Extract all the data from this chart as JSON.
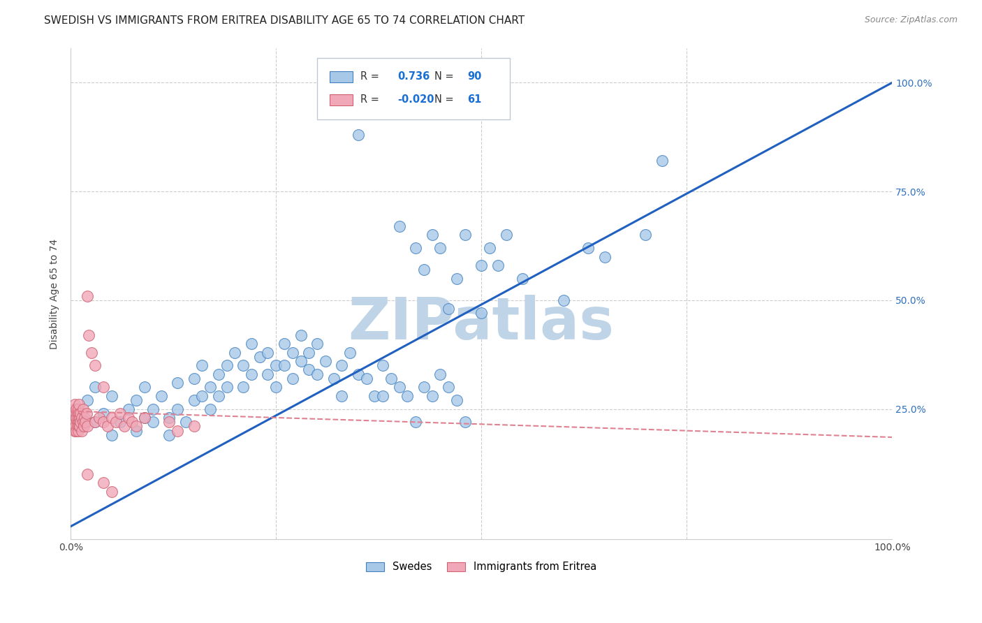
{
  "title": "SWEDISH VS IMMIGRANTS FROM ERITREA DISABILITY AGE 65 TO 74 CORRELATION CHART",
  "source": "Source: ZipAtlas.com",
  "ylabel": "Disability Age 65 to 74",
  "xlim": [
    0,
    1
  ],
  "ylim": [
    -0.05,
    1.08
  ],
  "swedes_color": "#a8c8e8",
  "swedes_edge_color": "#4080c0",
  "eritrea_color": "#f0a8b8",
  "eritrea_edge_color": "#d06070",
  "swedes_line_color": "#2060c0",
  "eritrea_line_color": "#e08090",
  "background_color": "#ffffff",
  "grid_color": "#cccccc",
  "legend_R_swedes": "0.736",
  "legend_N_swedes": "90",
  "legend_R_eritrea": "-0.020",
  "legend_N_eritrea": "61",
  "sw_line_x0": 0.0,
  "sw_line_y0": -0.02,
  "sw_line_x1": 1.0,
  "sw_line_y1": 1.0,
  "er_line_x0": 0.0,
  "er_line_y0": 0.245,
  "er_line_x1": 1.0,
  "er_line_y1": 0.185,
  "title_fontsize": 11,
  "axis_label_fontsize": 10,
  "tick_fontsize": 10,
  "watermark_text": "ZIPatlas",
  "watermark_color": "#c0d4e8",
  "watermark_fontsize": 60
}
